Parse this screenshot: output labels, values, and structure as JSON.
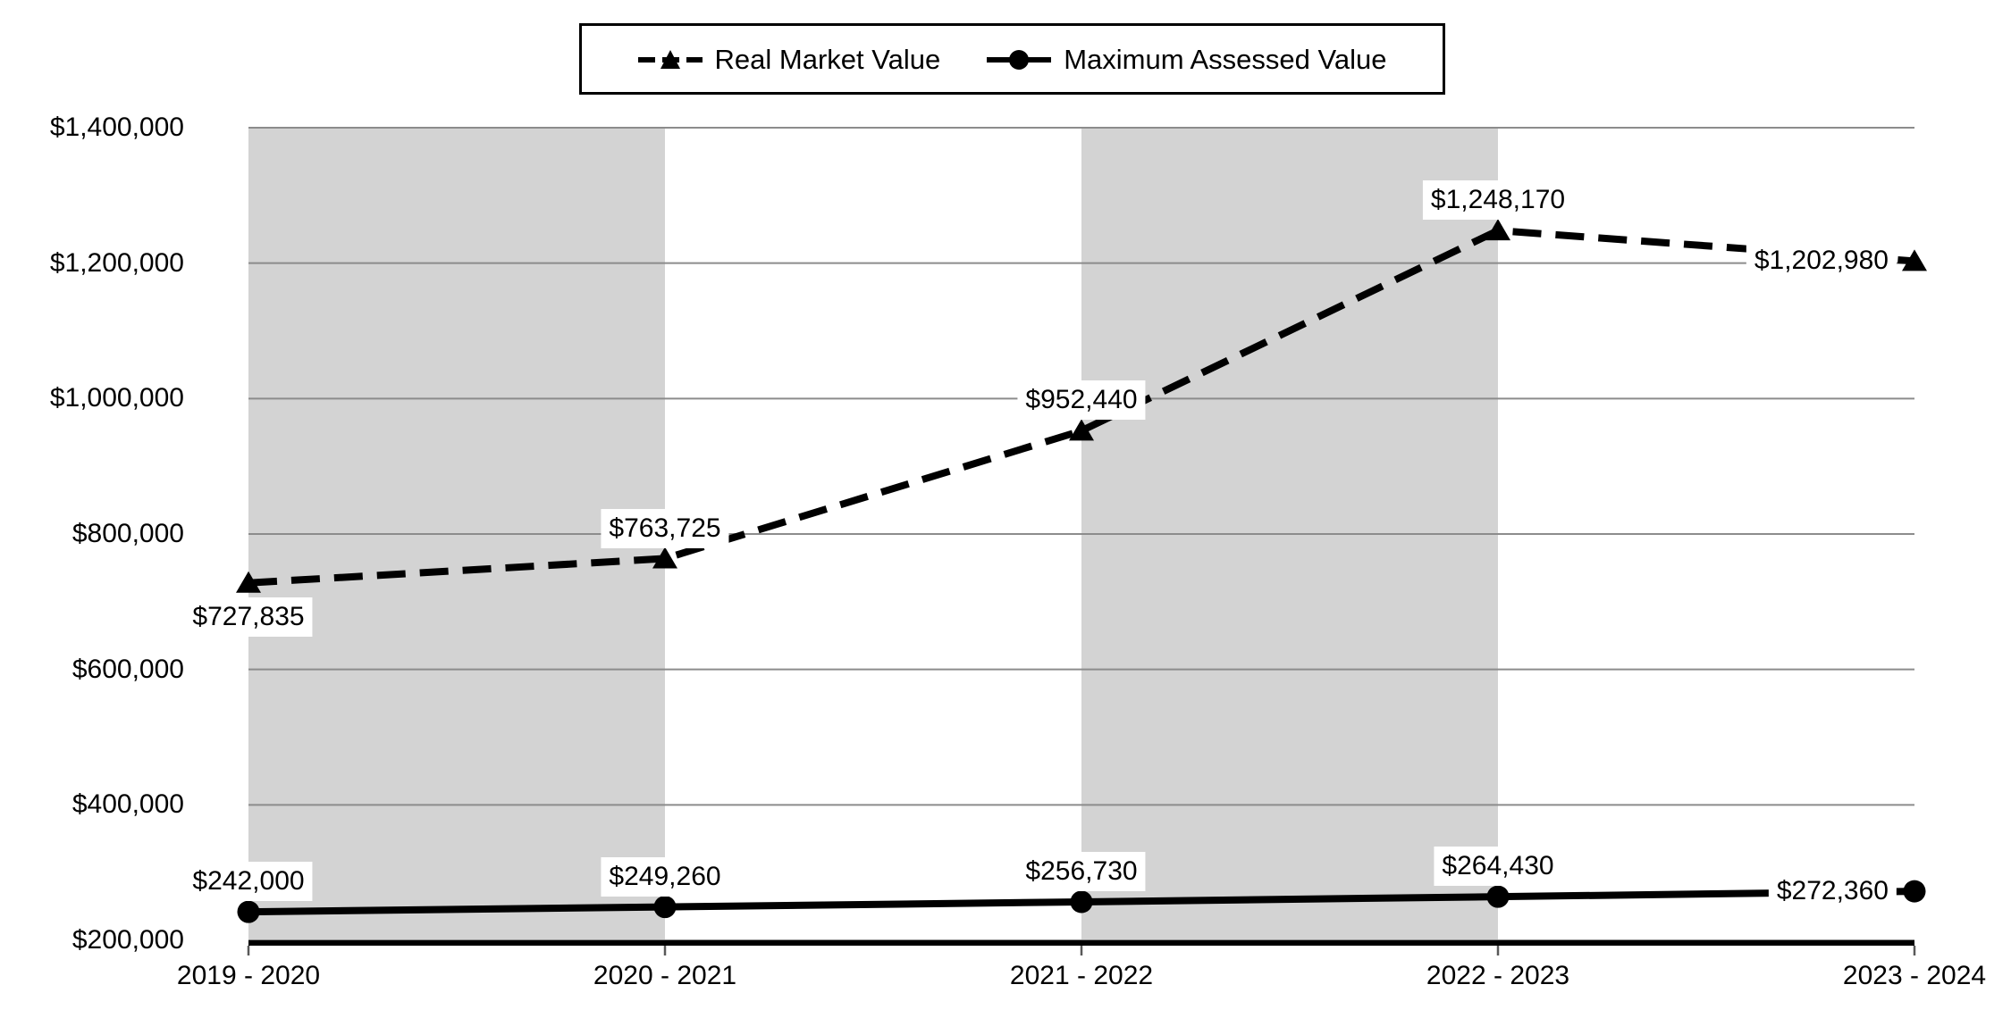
{
  "chart_data": {
    "type": "line",
    "title": "",
    "categories": [
      "2019 - 2020",
      "2020 - 2021",
      "2021 - 2022",
      "2022 - 2023",
      "2023 - 2024"
    ],
    "series": [
      {
        "name": "Real Market Value",
        "line_style": "dashed",
        "marker": "triangle",
        "values": [
          727835,
          763725,
          952440,
          1248170,
          1202980
        ],
        "data_labels": [
          "$727,835",
          "$763,725",
          "$952,440",
          "$1,248,170",
          "$1,202,980"
        ],
        "label_positions": [
          "below",
          "above",
          "above",
          "above",
          "left"
        ]
      },
      {
        "name": "Maximum Assessed Value",
        "line_style": "solid",
        "marker": "circle",
        "values": [
          242000,
          249260,
          256730,
          264430,
          272360
        ],
        "data_labels": [
          "$242,000",
          "$249,260",
          "$256,730",
          "$264,430",
          "$272,360"
        ],
        "label_positions": [
          "above",
          "above",
          "above",
          "above",
          "left"
        ]
      }
    ],
    "y_axis": {
      "min": 200000,
      "max": 1400000,
      "step": 200000,
      "tick_labels": [
        "$200,000",
        "$400,000",
        "$600,000",
        "$800,000",
        "$1,000,000",
        "$1,200,000",
        "$1,400,000"
      ]
    },
    "x_axis": {
      "tick_labels": [
        "2019 - 2020",
        "2020 - 2021",
        "2021 - 2022",
        "2022 - 2023",
        "2023 - 2024"
      ]
    },
    "legend": {
      "position": "top-center",
      "entries": [
        "Real Market Value",
        "Maximum Assessed Value"
      ]
    },
    "grid": "horizontal",
    "plot_bands": {
      "pattern": "alternating-vertical",
      "first": "gray"
    },
    "colors": {
      "background": "#ffffff",
      "band_gray": "#d3d3d3",
      "gridline": "#8c8c8c",
      "axis_line": "#000000",
      "tick_mark": "#595959",
      "series_line": "#000000",
      "text": "#000000",
      "data_label_bg": "#ffffff",
      "legend_border": "#000000"
    }
  }
}
